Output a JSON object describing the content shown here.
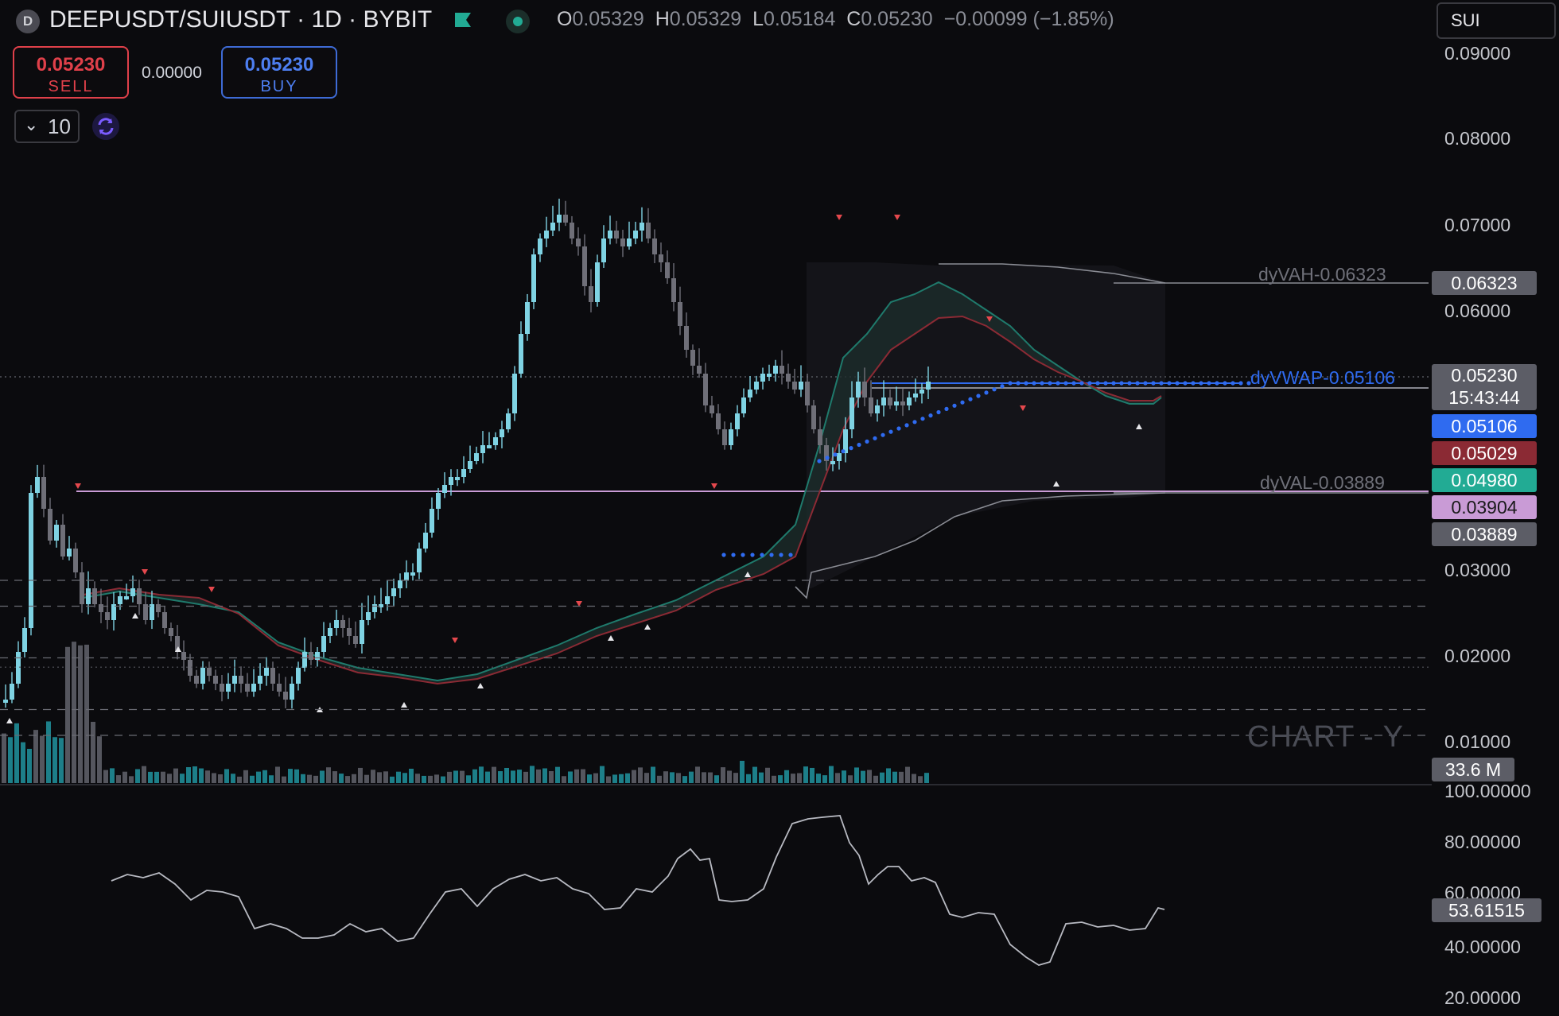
{
  "header": {
    "symbol_badge": "D",
    "symbol": "DEEPUSDT/SUIUSDT · 1D · BYBIT",
    "ohlc": {
      "o_label": "O",
      "o": "0.05329",
      "h_label": "H",
      "h": "0.05329",
      "l_label": "L",
      "l": "0.05184",
      "c_label": "C",
      "c": "0.05230",
      "change": "−0.00099 (−1.85%)"
    },
    "flag_color": "#22ab94"
  },
  "search": {
    "value": "SUI"
  },
  "trade": {
    "sell_price": "0.05230",
    "sell_label": "SELL",
    "spread": "0.00000",
    "buy_price": "0.05230",
    "buy_label": "BUY",
    "quantity": "10"
  },
  "price_axis": [
    "0.09000",
    "0.08000",
    "0.07000",
    "0.06000",
    "0.03000",
    "0.02000",
    "0.01000"
  ],
  "price_tags": {
    "vah": "0.06323",
    "last": "0.05230",
    "countdown": "15:43:44",
    "vwap": "0.05106",
    "ema_red": "0.05029",
    "ema_green": "0.04980",
    "level_purple": "0.03904",
    "val": "0.03889",
    "volume": "33.6 M"
  },
  "levels": {
    "vah_label": "dyVAH-0.06323",
    "vwap_label": "dyVWAP-0.05106",
    "val_label": "dyVAL-0.03889"
  },
  "watermark": "CHART - Y",
  "rsi": {
    "axis": [
      "100.00000",
      "80.00000",
      "60.00000",
      "40.00000",
      "20.00000"
    ],
    "value": "53.61515"
  },
  "colors": {
    "bull": "#7fd3e3",
    "bear": "#6f6f78",
    "vwap": "#2f6bf0",
    "ema_red": "#8b2a34",
    "ema_green": "#1f7a6c",
    "purple_level": "#c99bd6",
    "rsi_band": "#2a1638",
    "rsi_overbought": "#e5484d"
  },
  "chart_data": {
    "type": "candlestick",
    "y_axis_range": [
      0.0,
      0.09
    ],
    "rsi_range": [
      20,
      100
    ],
    "rsi_last": 53.61515,
    "last_price": 0.0523,
    "vwap": 0.05106,
    "value_area_high": 0.06323,
    "value_area_low": 0.03889
  }
}
